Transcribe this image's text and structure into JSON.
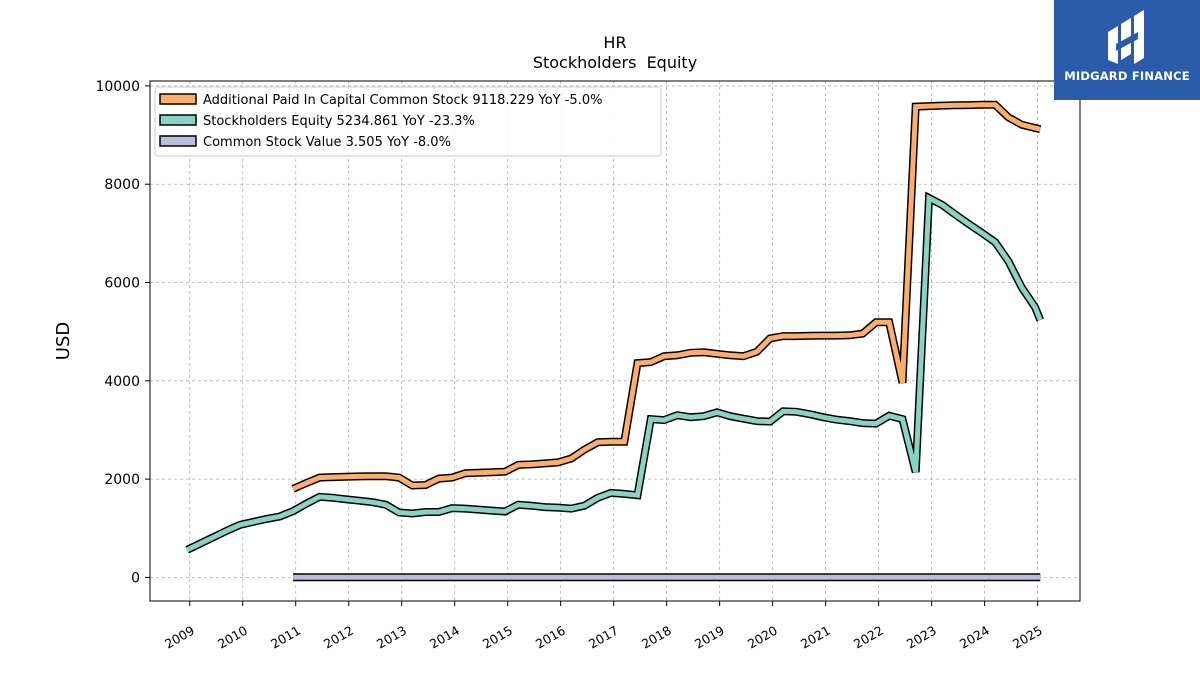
{
  "chart_data": {
    "type": "line",
    "title": "HR",
    "subtitle": "Stockholders  Equity",
    "xlabel": "",
    "ylabel": "USD",
    "xlim": [
      2008.25,
      2025.8
    ],
    "ylim": [
      -480,
      10100
    ],
    "yticks": [
      0,
      2000,
      4000,
      6000,
      8000,
      10000
    ],
    "xticks": [
      "2009",
      "2010",
      "2011",
      "2012",
      "2013",
      "2014",
      "2015",
      "2016",
      "2017",
      "2018",
      "2019",
      "2020",
      "2021",
      "2022",
      "2023",
      "2024",
      "2025"
    ],
    "grid": true,
    "legend_position": "top-left",
    "series": [
      {
        "name": "Additional Paid In Capital Common Stock  9118.229 YoY -5.0%",
        "color": "#fdae6b",
        "points": [
          [
            2010.95,
            1800
          ],
          [
            2011.2,
            1920
          ],
          [
            2011.45,
            2030
          ],
          [
            2011.7,
            2040
          ],
          [
            2011.95,
            2050
          ],
          [
            2012.2,
            2055
          ],
          [
            2012.45,
            2060
          ],
          [
            2012.7,
            2060
          ],
          [
            2012.95,
            2030
          ],
          [
            2013.2,
            1870
          ],
          [
            2013.45,
            1880
          ],
          [
            2013.7,
            2010
          ],
          [
            2013.95,
            2030
          ],
          [
            2014.2,
            2120
          ],
          [
            2014.45,
            2130
          ],
          [
            2014.7,
            2140
          ],
          [
            2014.95,
            2150
          ],
          [
            2015.2,
            2290
          ],
          [
            2015.45,
            2300
          ],
          [
            2015.7,
            2320
          ],
          [
            2015.95,
            2340
          ],
          [
            2016.2,
            2420
          ],
          [
            2016.45,
            2600
          ],
          [
            2016.7,
            2750
          ],
          [
            2016.95,
            2760
          ],
          [
            2017.2,
            2760
          ],
          [
            2017.45,
            4360
          ],
          [
            2017.7,
            4380
          ],
          [
            2017.95,
            4500
          ],
          [
            2018.2,
            4520
          ],
          [
            2018.45,
            4570
          ],
          [
            2018.7,
            4580
          ],
          [
            2018.95,
            4550
          ],
          [
            2019.2,
            4520
          ],
          [
            2019.45,
            4500
          ],
          [
            2019.7,
            4590
          ],
          [
            2019.95,
            4860
          ],
          [
            2020.2,
            4910
          ],
          [
            2020.45,
            4910
          ],
          [
            2020.7,
            4915
          ],
          [
            2020.95,
            4920
          ],
          [
            2021.2,
            4920
          ],
          [
            2021.45,
            4925
          ],
          [
            2021.7,
            4960
          ],
          [
            2021.95,
            5190
          ],
          [
            2022.2,
            5190
          ],
          [
            2022.45,
            3960
          ],
          [
            2022.7,
            9580
          ],
          [
            2022.95,
            9590
          ],
          [
            2023.2,
            9600
          ],
          [
            2023.45,
            9605
          ],
          [
            2023.7,
            9610
          ],
          [
            2023.95,
            9615
          ],
          [
            2024.2,
            9615
          ],
          [
            2024.45,
            9360
          ],
          [
            2024.7,
            9210
          ],
          [
            2025.05,
            9118.229
          ]
        ]
      },
      {
        "name": "Stockholders Equity  5234.861 YoY -23.3%",
        "color": "#88d3c3",
        "points": [
          [
            2008.95,
            560
          ],
          [
            2009.2,
            690
          ],
          [
            2009.45,
            820
          ],
          [
            2009.7,
            950
          ],
          [
            2009.95,
            1070
          ],
          [
            2010.2,
            1130
          ],
          [
            2010.45,
            1190
          ],
          [
            2010.7,
            1240
          ],
          [
            2010.95,
            1350
          ],
          [
            2011.2,
            1500
          ],
          [
            2011.45,
            1640
          ],
          [
            2011.7,
            1620
          ],
          [
            2011.95,
            1590
          ],
          [
            2012.2,
            1560
          ],
          [
            2012.45,
            1530
          ],
          [
            2012.7,
            1480
          ],
          [
            2012.95,
            1320
          ],
          [
            2013.2,
            1300
          ],
          [
            2013.45,
            1330
          ],
          [
            2013.7,
            1330
          ],
          [
            2013.95,
            1410
          ],
          [
            2014.2,
            1400
          ],
          [
            2014.45,
            1380
          ],
          [
            2014.7,
            1360
          ],
          [
            2014.95,
            1340
          ],
          [
            2015.2,
            1480
          ],
          [
            2015.45,
            1460
          ],
          [
            2015.7,
            1430
          ],
          [
            2015.95,
            1420
          ],
          [
            2016.2,
            1400
          ],
          [
            2016.45,
            1460
          ],
          [
            2016.7,
            1620
          ],
          [
            2016.95,
            1720
          ],
          [
            2017.2,
            1700
          ],
          [
            2017.45,
            1670
          ],
          [
            2017.7,
            3220
          ],
          [
            2017.95,
            3200
          ],
          [
            2018.2,
            3300
          ],
          [
            2018.45,
            3260
          ],
          [
            2018.7,
            3280
          ],
          [
            2018.95,
            3360
          ],
          [
            2019.2,
            3280
          ],
          [
            2019.45,
            3230
          ],
          [
            2019.7,
            3180
          ],
          [
            2019.95,
            3170
          ],
          [
            2020.2,
            3380
          ],
          [
            2020.45,
            3370
          ],
          [
            2020.7,
            3320
          ],
          [
            2020.95,
            3260
          ],
          [
            2021.2,
            3210
          ],
          [
            2021.45,
            3180
          ],
          [
            2021.7,
            3140
          ],
          [
            2021.95,
            3130
          ],
          [
            2022.2,
            3290
          ],
          [
            2022.45,
            3220
          ],
          [
            2022.7,
            2140
          ],
          [
            2022.95,
            7720
          ],
          [
            2023.2,
            7580
          ],
          [
            2023.45,
            7380
          ],
          [
            2023.7,
            7190
          ],
          [
            2023.95,
            7010
          ],
          [
            2024.2,
            6820
          ],
          [
            2024.45,
            6430
          ],
          [
            2024.7,
            5900
          ],
          [
            2024.95,
            5500
          ],
          [
            2025.05,
            5234.861
          ]
        ]
      },
      {
        "name": "Common Stock Value  3.505 YoY -8.0%",
        "color": "#bcbddc",
        "points": [
          [
            2010.95,
            3.8
          ],
          [
            2012.95,
            3.8
          ],
          [
            2014.95,
            3.8
          ],
          [
            2016.95,
            3.8
          ],
          [
            2018.95,
            3.8
          ],
          [
            2020.95,
            3.8
          ],
          [
            2022.45,
            3.81
          ],
          [
            2022.95,
            3.8
          ],
          [
            2024.2,
            3.7
          ],
          [
            2025.05,
            3.505
          ]
        ]
      }
    ]
  },
  "brand": {
    "name": "MIDGARD FINANCE",
    "color": "#2b5cab"
  }
}
